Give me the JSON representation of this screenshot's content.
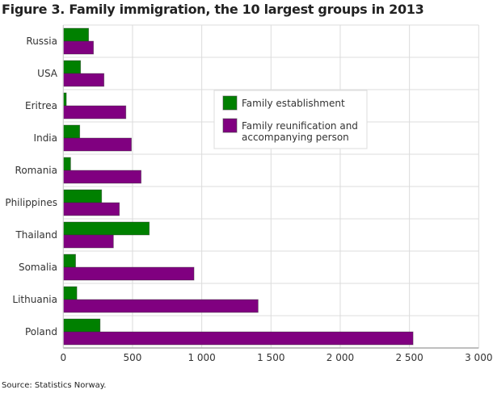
{
  "chart_data": {
    "type": "bar",
    "orientation": "horizontal",
    "title": "Figure 3. Family immigration, the 10 largest groups in 2013",
    "source": "Source: Statistics Norway.",
    "categories": [
      "Russia",
      "USA",
      "Eritrea",
      "India",
      "Romania",
      "Philippines",
      "Thailand",
      "Somalia",
      "Lithuania",
      "Poland"
    ],
    "series": [
      {
        "name": "Family establishment",
        "color": "#008000",
        "values": [
          183,
          125,
          22,
          119,
          53,
          277,
          621,
          89,
          98,
          266
        ]
      },
      {
        "name": "Family reunification and accompanying person",
        "color": "#800080",
        "values": [
          218,
          294,
          452,
          492,
          562,
          405,
          362,
          944,
          1407,
          2526
        ]
      }
    ],
    "xlim": [
      0,
      3000
    ],
    "xticks": [
      0,
      500,
      1000,
      1500,
      2000,
      2500,
      3000
    ],
    "xtick_labels": [
      "0",
      "500",
      "1 000",
      "1 500",
      "2 000",
      "2 500",
      "3 000"
    ],
    "grid": true,
    "legend_position": "upper-center",
    "legend_labels": [
      [
        "Family establishment"
      ],
      [
        "Family reunification and",
        "accompanying person"
      ]
    ]
  }
}
